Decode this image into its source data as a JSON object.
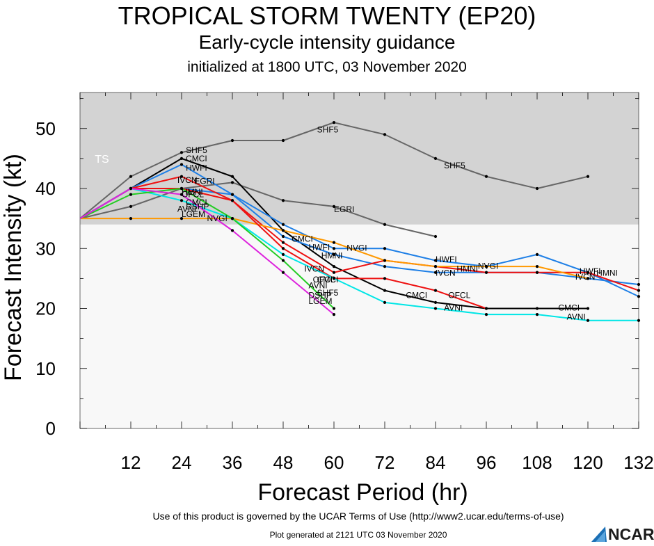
{
  "title": "TROPICAL STORM TWENTY (EP20)",
  "subtitle": "Early-cycle intensity guidance",
  "initialized": "initialized at 1800 UTC, 03 November 2020",
  "footer_terms": "Use of this product is governed by the UCAR Terms of Use (http://www2.ucar.edu/terms-of-use)",
  "footer_generated": "Plot generated at 2121 UTC   03 November 2020",
  "logo_text": "NCAR",
  "chart_data": {
    "type": "line",
    "xlabel": "Forecast Period (hr)",
    "ylabel": "Forecast Intensity (kt)",
    "xlim": [
      0,
      132
    ],
    "ylim": [
      0,
      56
    ],
    "xticks": [
      12,
      24,
      36,
      48,
      60,
      72,
      84,
      96,
      108,
      120,
      132
    ],
    "yticks": [
      0,
      10,
      20,
      30,
      40,
      50
    ],
    "band": {
      "label": "TS",
      "from": 34,
      "to": 56,
      "color": "#d3d3d3"
    },
    "series": [
      {
        "name": "SHF5",
        "color": "#666666",
        "x": [
          0,
          12,
          24,
          36,
          48,
          60,
          72,
          84,
          96,
          108,
          120
        ],
        "y": [
          35,
          42,
          46,
          48,
          48,
          51,
          49,
          45,
          42,
          40,
          42
        ]
      },
      {
        "name": "EGRI",
        "color": "#666666",
        "x": [
          0,
          12,
          24,
          36,
          48,
          60,
          72,
          84
        ],
        "y": [
          35,
          37,
          40,
          41,
          38,
          37,
          34,
          32
        ]
      },
      {
        "name": "CMCI",
        "color": "#000000",
        "x": [
          0,
          12,
          24,
          36,
          48,
          60,
          72,
          84,
          96,
          108,
          120
        ],
        "y": [
          35,
          40,
          45,
          42,
          33,
          27,
          23,
          21,
          20,
          20,
          20
        ]
      },
      {
        "name": "HWFI",
        "color": "#1e7fe6",
        "x": [
          0,
          12,
          24,
          36,
          48,
          60,
          72,
          84,
          96,
          108,
          120,
          132
        ],
        "y": [
          35,
          40,
          44,
          39,
          34,
          30,
          30,
          28,
          27,
          29,
          26,
          22
        ]
      },
      {
        "name": "IVCN",
        "color": "#1e7fe6",
        "x": [
          0,
          12,
          24,
          36,
          48,
          60,
          72,
          84,
          96,
          108,
          120,
          132
        ],
        "y": [
          35,
          40,
          40,
          39,
          32,
          29,
          27,
          26,
          26,
          26,
          25,
          24
        ]
      },
      {
        "name": "HMNI",
        "color": "#ee1111",
        "x": [
          0,
          12,
          24,
          36,
          48,
          60,
          72,
          84,
          96,
          108,
          120,
          132
        ],
        "y": [
          35,
          40,
          42,
          38,
          31,
          26,
          28,
          27,
          26,
          26,
          26,
          23
        ]
      },
      {
        "name": "NVGI",
        "color": "#ff9900",
        "x": [
          0,
          12,
          24,
          36,
          48,
          60,
          72,
          84,
          96,
          108,
          120
        ],
        "y": [
          35,
          35,
          35,
          35,
          33,
          31,
          28,
          27,
          27,
          27,
          25
        ]
      },
      {
        "name": "OFCL",
        "color": "#ee1111",
        "x": [
          0,
          12,
          24,
          36,
          48,
          60,
          72,
          84,
          96
        ],
        "y": [
          35,
          40,
          40,
          38,
          30,
          25,
          25,
          23,
          20
        ]
      },
      {
        "name": "AVNI",
        "color": "#00e6e6",
        "x": [
          0,
          12,
          24,
          36,
          48,
          60,
          72,
          84,
          96,
          108,
          120,
          132
        ],
        "y": [
          35,
          40,
          38,
          35,
          29,
          25,
          21,
          20,
          19,
          19,
          18,
          18
        ]
      },
      {
        "name": "DSHP",
        "color": "#22cc22",
        "x": [
          0,
          12,
          24,
          36,
          48,
          60
        ],
        "y": [
          35,
          39,
          40,
          35,
          28,
          20
        ]
      },
      {
        "name": "LGEM",
        "color": "#dd22dd",
        "x": [
          0,
          12,
          24,
          36,
          48,
          60
        ],
        "y": [
          35,
          40,
          39,
          33,
          26,
          19
        ]
      }
    ],
    "labels": [
      {
        "text": "SHF5",
        "x": 25,
        "y": 46.4
      },
      {
        "text": "CMCI",
        "x": 25,
        "y": 45
      },
      {
        "text": "HWFI",
        "x": 25,
        "y": 43.4
      },
      {
        "text": "IVCN",
        "x": 23,
        "y": 41.4
      },
      {
        "text": "EGRI",
        "x": 27,
        "y": 41.2
      },
      {
        "text": "HMNI",
        "x": 24,
        "y": 39.4
      },
      {
        "text": "OFCL",
        "x": 24,
        "y": 39.0
      },
      {
        "text": "CMCI",
        "x": 25,
        "y": 37.7
      },
      {
        "text": "DSHP",
        "x": 25,
        "y": 37.0
      },
      {
        "text": "AVNI",
        "x": 23,
        "y": 36.6
      },
      {
        "text": "LGEM",
        "x": 24,
        "y": 35.7
      },
      {
        "text": "NVGI",
        "x": 30,
        "y": 35
      },
      {
        "text": "SHF5",
        "x": 56,
        "y": 49.8
      },
      {
        "text": "EGRI",
        "x": 60,
        "y": 36.5
      },
      {
        "text": "CMCI",
        "x": 50,
        "y": 31.6
      },
      {
        "text": "HWFI",
        "x": 54,
        "y": 30.2
      },
      {
        "text": "HMNI",
        "x": 57,
        "y": 28.8
      },
      {
        "text": "NVGI",
        "x": 63,
        "y": 30.1
      },
      {
        "text": "IVCN",
        "x": 53,
        "y": 26.6
      },
      {
        "text": "CMCI",
        "x": 56,
        "y": 24.8
      },
      {
        "text": "OFCL",
        "x": 55,
        "y": 24.8
      },
      {
        "text": "AVNI",
        "x": 54,
        "y": 23.8
      },
      {
        "text": "SHF5",
        "x": 56,
        "y": 22.6
      },
      {
        "text": "DSHP",
        "x": 54,
        "y": 22.2
      },
      {
        "text": "LGEM",
        "x": 54,
        "y": 21.2
      },
      {
        "text": "SHF5",
        "x": 86,
        "y": 43.8
      },
      {
        "text": "HWFI",
        "x": 84,
        "y": 28.2
      },
      {
        "text": "HMNI",
        "x": 89,
        "y": 26.6
      },
      {
        "text": "NVGI",
        "x": 94,
        "y": 27.1
      },
      {
        "text": "IVCN",
        "x": 84,
        "y": 25.9
      },
      {
        "text": "CMCI",
        "x": 77,
        "y": 22.2
      },
      {
        "text": "OFCL",
        "x": 87,
        "y": 22.2
      },
      {
        "text": "AVNI",
        "x": 86,
        "y": 20.1
      },
      {
        "text": "CMCI",
        "x": 113,
        "y": 20.1
      },
      {
        "text": "AVNI",
        "x": 115,
        "y": 18.6
      },
      {
        "text": "HWFI",
        "x": 118,
        "y": 26.2
      },
      {
        "text": "HMNI",
        "x": 122,
        "y": 25.9
      },
      {
        "text": "IVCN",
        "x": 117,
        "y": 25.3
      }
    ]
  }
}
